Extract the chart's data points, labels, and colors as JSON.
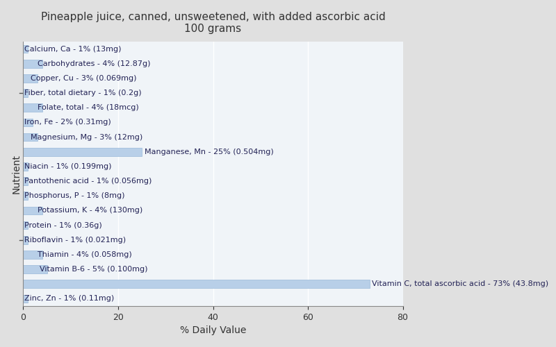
{
  "title": "Pineapple juice, canned, unsweetened, with added ascorbic acid\n100 grams",
  "xlabel": "% Daily Value",
  "ylabel": "Nutrient",
  "xlim": [
    0,
    80
  ],
  "xticks": [
    0,
    20,
    40,
    60,
    80
  ],
  "background_color": "#e0e0e0",
  "plot_background_color": "#f0f4f8",
  "bar_color": "#b8cfe8",
  "bar_edge_color": "#8aadd4",
  "grid_color": "#ffffff",
  "tick_color": "#333333",
  "title_fontsize": 11,
  "axis_label_fontsize": 10,
  "tick_fontsize": 9,
  "bar_label_fontsize": 8,
  "nutrients": [
    "Calcium, Ca - 1% (13mg)",
    "Carbohydrates - 4% (12.87g)",
    "Copper, Cu - 3% (0.069mg)",
    "Fiber, total dietary - 1% (0.2g)",
    "Folate, total - 4% (18mcg)",
    "Iron, Fe - 2% (0.31mg)",
    "Magnesium, Mg - 3% (12mg)",
    "Manganese, Mn - 25% (0.504mg)",
    "Niacin - 1% (0.199mg)",
    "Pantothenic acid - 1% (0.056mg)",
    "Phosphorus, P - 1% (8mg)",
    "Potassium, K - 4% (130mg)",
    "Protein - 1% (0.36g)",
    "Riboflavin - 1% (0.021mg)",
    "Thiamin - 4% (0.058mg)",
    "Vitamin B-6 - 5% (0.100mg)",
    "Vitamin C, total ascorbic acid - 73% (43.8mg)",
    "Zinc, Zn - 1% (0.11mg)"
  ],
  "values": [
    1,
    4,
    3,
    1,
    4,
    2,
    3,
    25,
    1,
    1,
    1,
    4,
    1,
    1,
    4,
    5,
    73,
    1
  ],
  "label_indent": [
    0.3,
    3.0,
    1.5,
    0.3,
    3.0,
    0.3,
    1.5,
    0.3,
    0.3,
    0.3,
    0.3,
    3.0,
    0.3,
    0.3,
    3.0,
    3.5,
    0.3,
    0.3
  ],
  "label_outside": [
    false,
    false,
    false,
    false,
    false,
    false,
    false,
    true,
    false,
    false,
    false,
    false,
    false,
    false,
    false,
    false,
    true,
    false
  ]
}
